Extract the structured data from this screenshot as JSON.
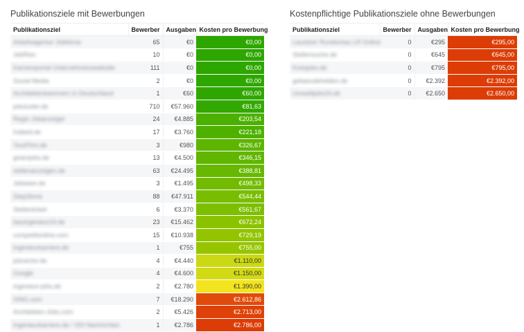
{
  "left_table": {
    "title": "Publikationsziele mit Bewerbungen",
    "columns": [
      "Publikationsziel",
      "Bewerber",
      "Ausgaben",
      "Kosten pro Bewerbung"
    ],
    "rows": [
      {
        "name": "Arbeitsagentur Jobbörse",
        "bewerber": "65",
        "ausgaben": "€0",
        "kosten": "€0,00",
        "color": "#2ea600",
        "text": "light"
      },
      {
        "name": "JobRiso",
        "bewerber": "10",
        "ausgaben": "€0",
        "kosten": "€0,00",
        "color": "#2ea600",
        "text": "light"
      },
      {
        "name": "Karriereportal Unternehmenswebsite",
        "bewerber": "111",
        "ausgaben": "€0",
        "kosten": "€0,00",
        "color": "#2ea600",
        "text": "light"
      },
      {
        "name": "Social Media",
        "bewerber": "2",
        "ausgaben": "€0",
        "kosten": "€0,00",
        "color": "#2ea600",
        "text": "light"
      },
      {
        "name": "Architektenkammern in Deutschland",
        "bewerber": "1",
        "ausgaben": "€60",
        "kosten": "€60,00",
        "color": "#30a700",
        "text": "light"
      },
      {
        "name": "jobcluster.de",
        "bewerber": "710",
        "ausgaben": "€57.960",
        "kosten": "€81,63",
        "color": "#33a800",
        "text": "light"
      },
      {
        "name": "Regio Jobanzeiger",
        "bewerber": "24",
        "ausgaben": "€4.885",
        "kosten": "€203,54",
        "color": "#4bb000",
        "text": "light"
      },
      {
        "name": "Indeed.de",
        "bewerber": "17",
        "ausgaben": "€3.760",
        "kosten": "€221,18",
        "color": "#4eb100",
        "text": "light"
      },
      {
        "name": "YourFirm.de",
        "bewerber": "3",
        "ausgaben": "€980",
        "kosten": "€326,67",
        "color": "#5db500",
        "text": "light"
      },
      {
        "name": "greenjobs.de",
        "bewerber": "13",
        "ausgaben": "€4.500",
        "kosten": "€346,15",
        "color": "#60b600",
        "text": "light"
      },
      {
        "name": "stellenanzeigen.de",
        "bewerber": "63",
        "ausgaben": "€24.495",
        "kosten": "€388,81",
        "color": "#66b800",
        "text": "light"
      },
      {
        "name": "Jobware.de",
        "bewerber": "3",
        "ausgaben": "€1.495",
        "kosten": "€498,33",
        "color": "#72bb00",
        "text": "light"
      },
      {
        "name": "StepStone",
        "bewerber": "88",
        "ausgaben": "€47.911",
        "kosten": "€544,44",
        "color": "#79bd00",
        "text": "light"
      },
      {
        "name": "Stellenticket",
        "bewerber": "6",
        "ausgaben": "€3.370",
        "kosten": "€561,67",
        "color": "#7cbe00",
        "text": "light"
      },
      {
        "name": "bauingenieur24.de",
        "bewerber": "23",
        "ausgaben": "€15.462",
        "kosten": "€672,24",
        "color": "#8bc200",
        "text": "light"
      },
      {
        "name": "competitionline.com",
        "bewerber": "15",
        "ausgaben": "€10.938",
        "kosten": "€729,19",
        "color": "#92c400",
        "text": "light"
      },
      {
        "name": "ingenieurkarriere.de",
        "bewerber": "1",
        "ausgaben": "€755",
        "kosten": "€755,00",
        "color": "#96c500",
        "text": "light"
      },
      {
        "name": "jobvector.de",
        "bewerber": "4",
        "ausgaben": "€4.440",
        "kosten": "€1.110,00",
        "color": "#cbd814",
        "text": "dark"
      },
      {
        "name": "Google",
        "bewerber": "4",
        "ausgaben": "€4.600",
        "kosten": "€1.150,00",
        "color": "#d2da16",
        "text": "dark"
      },
      {
        "name": "ingenieur-jobs.de",
        "bewerber": "2",
        "ausgaben": "€2.780",
        "kosten": "€1.390,00",
        "color": "#f2e41e",
        "text": "dark"
      },
      {
        "name": "XING.com",
        "bewerber": "7",
        "ausgaben": "€18.290",
        "kosten": "€2.612,86",
        "color": "#e04a0a",
        "text": "light"
      },
      {
        "name": "Architekten-Jobs.com",
        "bewerber": "2",
        "ausgaben": "€5.426",
        "kosten": "€2.713,00",
        "color": "#de4208",
        "text": "light"
      },
      {
        "name": "Ingenieurkarriere.de / VDI Nachrichten",
        "bewerber": "1",
        "ausgaben": "€2.786",
        "kosten": "€2.786,00",
        "color": "#dc3d06",
        "text": "light"
      }
    ]
  },
  "right_table": {
    "title": "Kostenpflichtige Publikationsziele ohne Bewerbungen",
    "columns": [
      "Publikationsziel",
      "Bewerber",
      "Ausgaben",
      "Kosten pro Bewerbung"
    ],
    "rows": [
      {
        "name": "Lausitzer Rundschau LR Online",
        "bewerber": "0",
        "ausgaben": "€295",
        "kosten": "€295,00",
        "color": "#dc3d06",
        "text": "light"
      },
      {
        "name": "Stellensuche.de",
        "bewerber": "0",
        "ausgaben": "€645",
        "kosten": "€645,00",
        "color": "#dc3d06",
        "text": "light"
      },
      {
        "name": "Kreisjobs.de",
        "bewerber": "0",
        "ausgaben": "€795",
        "kosten": "€795,00",
        "color": "#dc3d06",
        "text": "light"
      },
      {
        "name": "gebaeudehelden.de",
        "bewerber": "0",
        "ausgaben": "€2.392",
        "kosten": "€2.392,00",
        "color": "#dc3d06",
        "text": "light"
      },
      {
        "name": "Umweltjobs24.de",
        "bewerber": "0",
        "ausgaben": "€2.650",
        "kosten": "€2.650,00",
        "color": "#dc3d06",
        "text": "light"
      }
    ]
  }
}
